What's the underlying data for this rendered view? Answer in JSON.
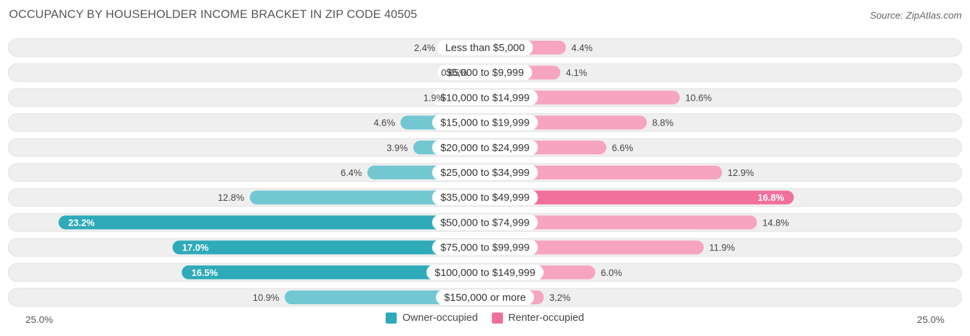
{
  "title": "OCCUPANCY BY HOUSEHOLDER INCOME BRACKET IN ZIP CODE 40505",
  "source": "Source: ZipAtlas.com",
  "colors": {
    "owner": "#72c7d2",
    "owner_strong": "#2eaab8",
    "renter": "#f6a4c0",
    "renter_strong": "#f06f9b",
    "row_bg": "#efefef"
  },
  "legend": [
    {
      "label": "Owner-occupied",
      "color": "#2eaab8"
    },
    {
      "label": "Renter-occupied",
      "color": "#f06f9b"
    }
  ],
  "axis": {
    "left_label": "25.0%",
    "right_label": "25.0%"
  },
  "chart_data": {
    "type": "bar",
    "orientation": "horizontal-diverging",
    "title": "OCCUPANCY BY HOUSEHOLDER INCOME BRACKET IN ZIP CODE 40505",
    "xlim": [
      -25,
      25
    ],
    "categories": [
      "Less than $5,000",
      "$5,000 to $9,999",
      "$10,000 to $14,999",
      "$15,000 to $19,999",
      "$20,000 to $24,999",
      "$25,000 to $34,999",
      "$35,000 to $49,999",
      "$50,000 to $74,999",
      "$75,000 to $99,999",
      "$100,000 to $149,999",
      "$150,000 or more"
    ],
    "series": [
      {
        "name": "Owner-occupied",
        "values": [
          2.4,
          0.65,
          1.9,
          4.6,
          3.9,
          6.4,
          12.8,
          23.2,
          17.0,
          16.5,
          10.9
        ],
        "labels": [
          "2.4%",
          "0.65%",
          "1.9%",
          "4.6%",
          "3.9%",
          "6.4%",
          "12.8%",
          "23.2%",
          "17.0%",
          "16.5%",
          "10.9%"
        ]
      },
      {
        "name": "Renter-occupied",
        "values": [
          4.4,
          4.1,
          10.6,
          8.8,
          6.6,
          12.9,
          16.8,
          14.8,
          11.9,
          6.0,
          3.2
        ],
        "labels": [
          "4.4%",
          "4.1%",
          "10.6%",
          "8.8%",
          "6.6%",
          "12.9%",
          "16.8%",
          "14.8%",
          "11.9%",
          "6.0%",
          "3.2%"
        ]
      }
    ],
    "legend_position": "bottom-center"
  }
}
